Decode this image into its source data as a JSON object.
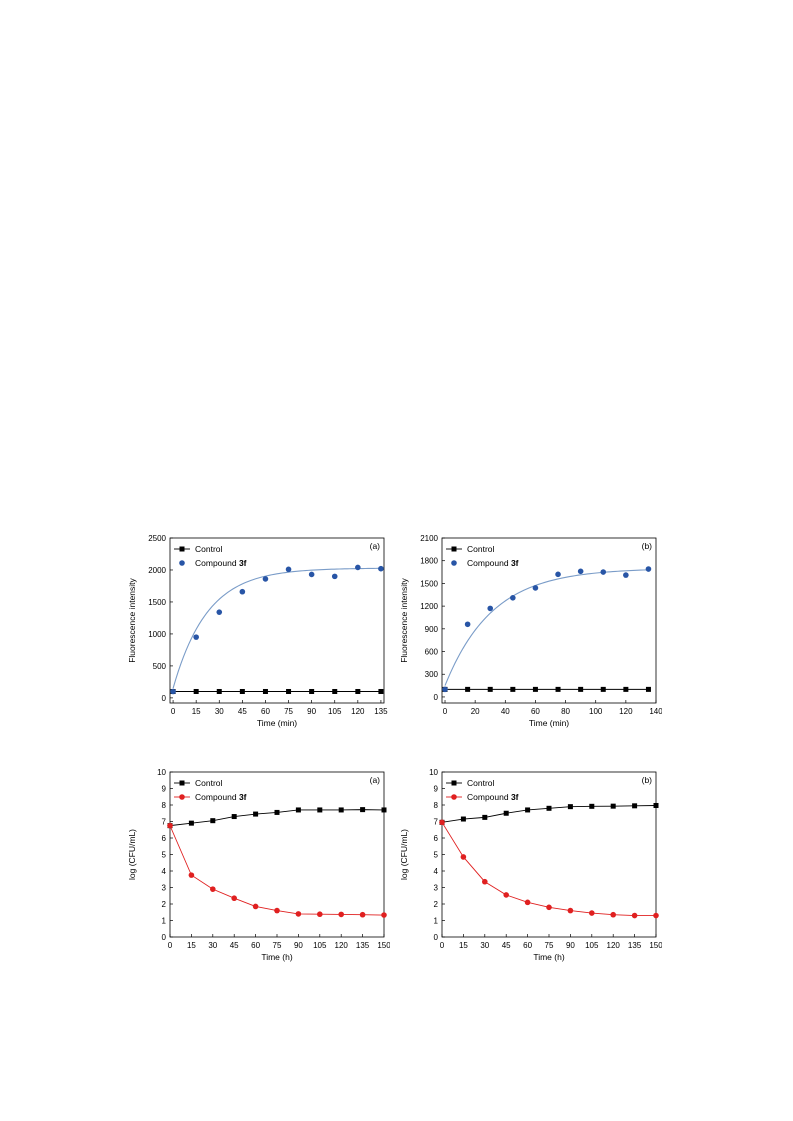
{
  "chart_data": [
    {
      "type": "scatter",
      "panel_label": "(a)",
      "xlabel": "Time (min)",
      "ylabel": "Fluorescence intensity",
      "xlim": [
        -2,
        137
      ],
      "ylim": [
        -80,
        2500
      ],
      "xticks": [
        0,
        15,
        30,
        45,
        60,
        75,
        90,
        105,
        120,
        135
      ],
      "yticks": [
        0,
        500,
        1000,
        1500,
        2000,
        2500
      ],
      "grid": false,
      "legend_position": "top-left",
      "series": [
        {
          "name": "Control",
          "color": "#000000",
          "marker": "square",
          "line": true,
          "x": [
            0,
            15,
            30,
            45,
            60,
            75,
            90,
            105,
            120,
            135
          ],
          "y": [
            100,
            100,
            100,
            100,
            100,
            100,
            100,
            100,
            100,
            100
          ]
        },
        {
          "name": "Compound 3f",
          "color": "#2855a6",
          "marker": "circle",
          "line": false,
          "x": [
            0,
            15,
            30,
            45,
            60,
            75,
            90,
            105,
            120,
            135
          ],
          "y": [
            100,
            950,
            1340,
            1660,
            1860,
            2010,
            1930,
            1900,
            2040,
            2020
          ]
        }
      ],
      "fit": {
        "color": "#7a9cc8",
        "y0": 150,
        "ymax": 2030,
        "k": 0.045
      }
    },
    {
      "type": "scatter",
      "panel_label": "(b)",
      "xlabel": "Time (min)",
      "ylabel": "Fluorescence intensity",
      "xlim": [
        -2,
        140
      ],
      "ylim": [
        -80,
        2100
      ],
      "xticks": [
        0,
        20,
        40,
        60,
        80,
        100,
        120,
        140
      ],
      "yticks": [
        0,
        300,
        600,
        900,
        1200,
        1500,
        1800,
        2100
      ],
      "grid": false,
      "legend_position": "top-left",
      "series": [
        {
          "name": "Control",
          "color": "#000000",
          "marker": "square",
          "line": true,
          "x": [
            0,
            15,
            30,
            45,
            60,
            75,
            90,
            105,
            120,
            135
          ],
          "y": [
            100,
            100,
            100,
            100,
            100,
            100,
            100,
            100,
            100,
            100
          ]
        },
        {
          "name": "Compound 3f",
          "color": "#2855a6",
          "marker": "circle",
          "line": false,
          "x": [
            0,
            15,
            30,
            45,
            60,
            75,
            90,
            105,
            120,
            135
          ],
          "y": [
            100,
            960,
            1170,
            1310,
            1440,
            1620,
            1660,
            1650,
            1610,
            1690
          ]
        }
      ],
      "fit": {
        "color": "#7a9cc8",
        "y0": 150,
        "ymax": 1700,
        "k": 0.032
      }
    },
    {
      "type": "line",
      "panel_label": "(a)",
      "xlabel": "Time (h)",
      "ylabel": "log (CFU/mL)",
      "xlim": [
        0,
        150
      ],
      "ylim": [
        0,
        10
      ],
      "xticks": [
        0,
        15,
        30,
        45,
        60,
        75,
        90,
        105,
        120,
        135,
        150
      ],
      "yticks": [
        0,
        1,
        2,
        3,
        4,
        5,
        6,
        7,
        8,
        9,
        10
      ],
      "grid": false,
      "legend_position": "top-left",
      "series": [
        {
          "name": "Control",
          "color": "#000000",
          "marker": "square",
          "line": true,
          "x": [
            0,
            15,
            30,
            45,
            60,
            75,
            90,
            105,
            120,
            135,
            150
          ],
          "y": [
            6.75,
            6.9,
            7.05,
            7.3,
            7.45,
            7.55,
            7.7,
            7.7,
            7.7,
            7.72,
            7.7
          ]
        },
        {
          "name": "Compound 3f",
          "color": "#e02020",
          "marker": "circle",
          "line": true,
          "x": [
            0,
            15,
            30,
            45,
            60,
            75,
            90,
            105,
            120,
            135,
            150
          ],
          "y": [
            6.75,
            3.75,
            2.9,
            2.35,
            1.85,
            1.6,
            1.4,
            1.38,
            1.37,
            1.35,
            1.33
          ]
        }
      ]
    },
    {
      "type": "line",
      "panel_label": "(b)",
      "xlabel": "Time (h)",
      "ylabel": "log (CFU/mL)",
      "xlim": [
        0,
        150
      ],
      "ylim": [
        0,
        10
      ],
      "xticks": [
        0,
        15,
        30,
        45,
        60,
        75,
        90,
        105,
        120,
        135,
        150
      ],
      "yticks": [
        0,
        1,
        2,
        3,
        4,
        5,
        6,
        7,
        8,
        9,
        10
      ],
      "grid": false,
      "legend_position": "top-left",
      "series": [
        {
          "name": "Control",
          "color": "#000000",
          "marker": "square",
          "line": true,
          "x": [
            0,
            15,
            30,
            45,
            60,
            75,
            90,
            105,
            120,
            135,
            150
          ],
          "y": [
            6.95,
            7.15,
            7.25,
            7.5,
            7.7,
            7.8,
            7.9,
            7.92,
            7.93,
            7.95,
            7.97
          ]
        },
        {
          "name": "Compound 3f",
          "color": "#e02020",
          "marker": "circle",
          "line": true,
          "x": [
            0,
            15,
            30,
            45,
            60,
            75,
            90,
            105,
            120,
            135,
            150
          ],
          "y": [
            6.95,
            4.85,
            3.35,
            2.55,
            2.1,
            1.8,
            1.6,
            1.45,
            1.35,
            1.3,
            1.3
          ]
        }
      ]
    }
  ]
}
